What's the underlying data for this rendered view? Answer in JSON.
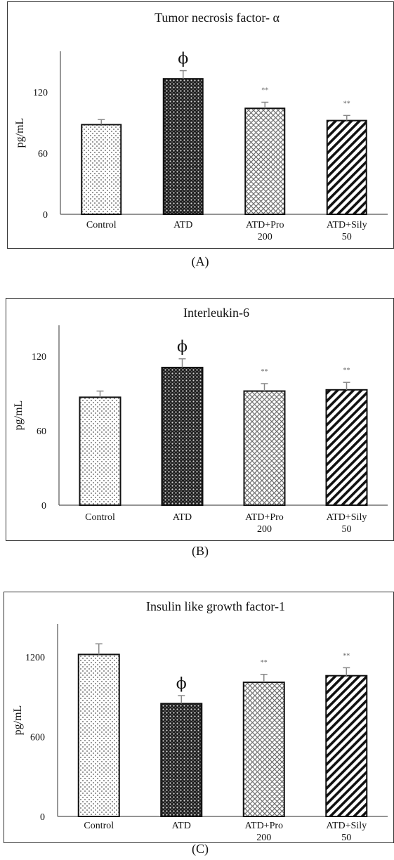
{
  "chart_data": [
    {
      "type": "bar",
      "panel_letter": "(A)",
      "title": "Tumor necrosis factor- α",
      "xlabel": "",
      "ylabel": "pg/mL",
      "ylim": [
        0,
        160
      ],
      "yticks": [
        "0",
        "60",
        "120"
      ],
      "ytick_values": [
        0,
        60,
        120
      ],
      "categories": [
        "Control",
        "ATD",
        "ATD+Pro 200",
        "ATD+Sily 50"
      ],
      "category_lines": [
        [
          "Control"
        ],
        [
          "ATD"
        ],
        [
          "ATD+Pro",
          "200"
        ],
        [
          "ATD+Sily",
          "50"
        ]
      ],
      "values": [
        88,
        133,
        104,
        92
      ],
      "errors": [
        5,
        8,
        6,
        5
      ],
      "annotations": [
        "",
        "ϕ",
        "**",
        "**"
      ],
      "patterns": [
        "dots-light",
        "checker-dark",
        "crosshatch",
        "diagonal"
      ],
      "grid": false
    },
    {
      "type": "bar",
      "panel_letter": "(B)",
      "title": "Interleukin-6",
      "xlabel": "",
      "ylabel": "pg/mL",
      "ylim": [
        0,
        145
      ],
      "yticks": [
        "0",
        "60",
        "120"
      ],
      "ytick_values": [
        0,
        60,
        120
      ],
      "categories": [
        "Control",
        "ATD",
        "ATD+Pro 200",
        "ATD+Sily 50"
      ],
      "category_lines": [
        [
          "Control"
        ],
        [
          "ATD"
        ],
        [
          "ATD+Pro",
          "200"
        ],
        [
          "ATD+Sily",
          "50"
        ]
      ],
      "values": [
        87,
        111,
        92,
        93
      ],
      "errors": [
        5,
        7,
        6,
        6
      ],
      "annotations": [
        "",
        "ϕ",
        "**",
        "**"
      ],
      "patterns": [
        "dots-light",
        "checker-dark",
        "crosshatch",
        "diagonal"
      ],
      "grid": false
    },
    {
      "type": "bar",
      "panel_letter": "(C)",
      "title": "Insulin like growth factor-1",
      "xlabel": "",
      "ylabel": "pg/mL",
      "ylim": [
        0,
        1450
      ],
      "yticks": [
        "0",
        "600",
        "1200"
      ],
      "ytick_values": [
        0,
        600,
        1200
      ],
      "categories": [
        "Control",
        "ATD",
        "ATD+Pro 200",
        "ATD+Sily 50"
      ],
      "category_lines": [
        [
          "Control"
        ],
        [
          "ATD"
        ],
        [
          "ATD+Pro",
          "200"
        ],
        [
          "ATD+Sily",
          "50"
        ]
      ],
      "values": [
        1220,
        850,
        1010,
        1060
      ],
      "errors": [
        80,
        60,
        60,
        60
      ],
      "annotations": [
        "",
        "ϕ",
        "**",
        "**"
      ],
      "patterns": [
        "dots-light",
        "checker-dark",
        "crosshatch",
        "diagonal"
      ],
      "grid": false
    }
  ]
}
